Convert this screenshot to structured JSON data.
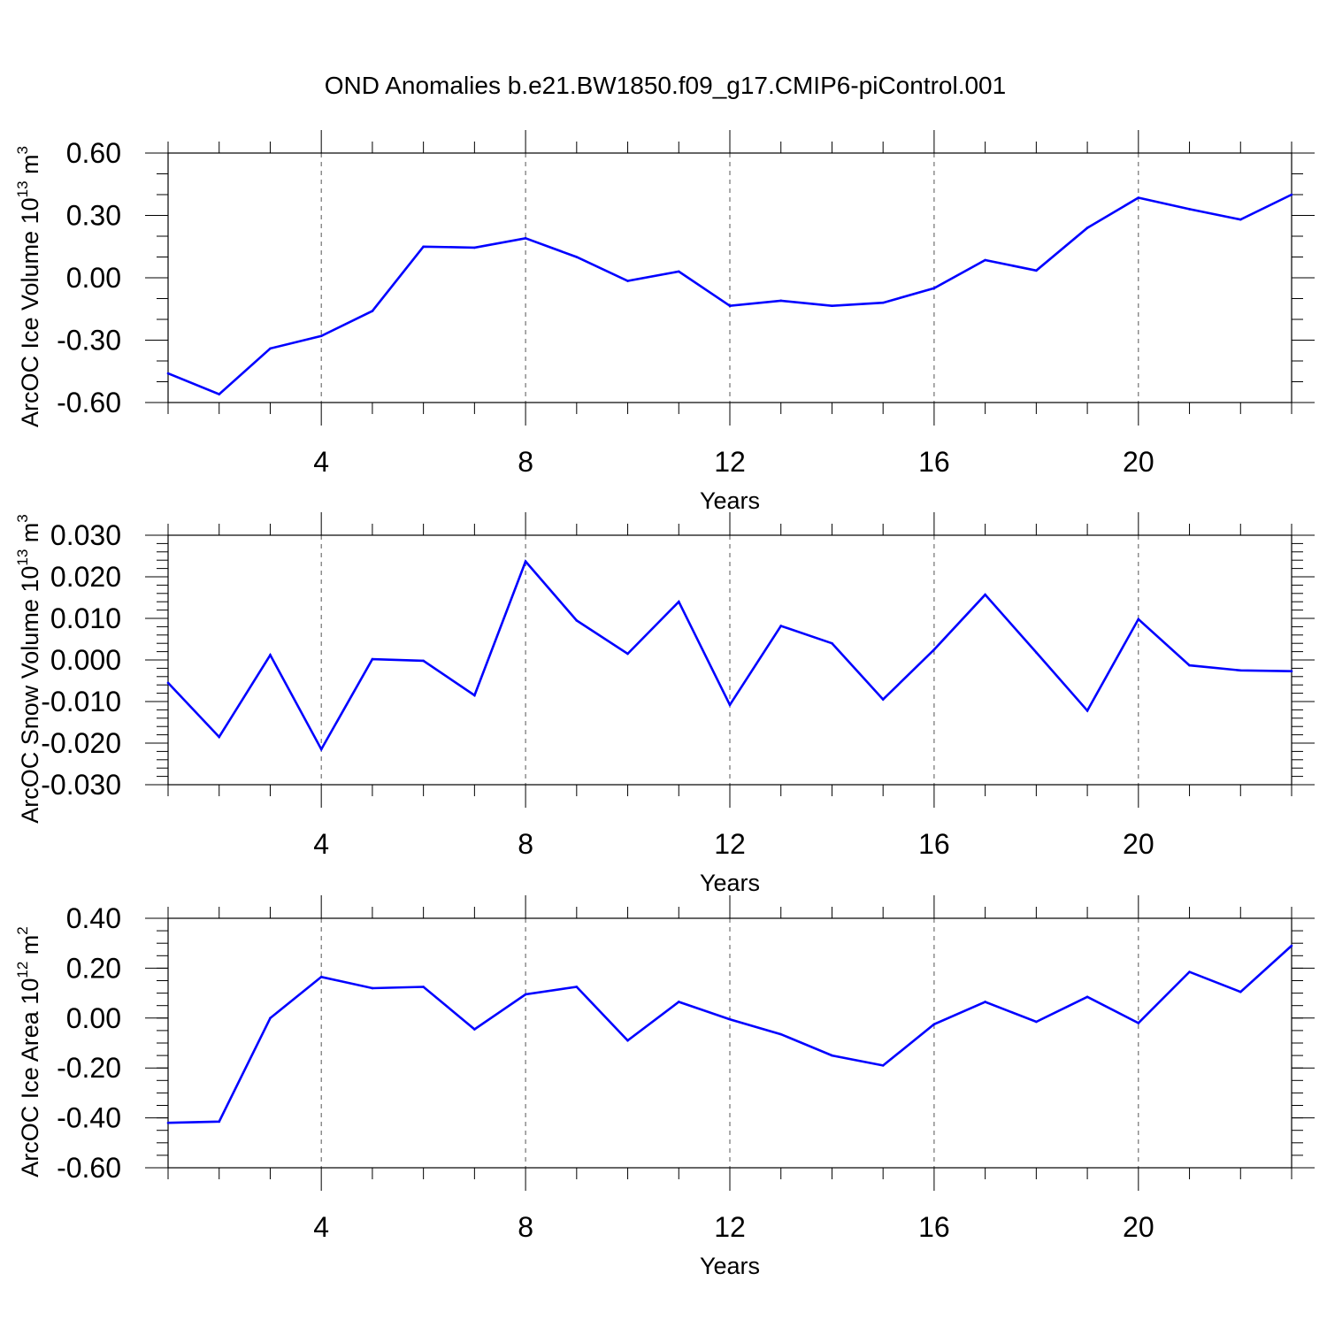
{
  "title": "OND Anomalies b.e21.BW1850.f09_g17.CMIP6-piControl.001",
  "colors": {
    "line": "#0000ff",
    "axis": "#000000",
    "grid": "#555555"
  },
  "chart_data": [
    {
      "type": "line",
      "name": "ice-volume",
      "ylabel": {
        "prefix": "ArcOC Ice Volume 10",
        "exp": "13",
        "unit": " m",
        "unit_exp": "3"
      },
      "xlabel": "Years",
      "xlim": [
        1,
        23
      ],
      "xticks": [
        4,
        8,
        12,
        16,
        20
      ],
      "xtick_labels": [
        "4",
        "8",
        "12",
        "16",
        "20"
      ],
      "ylim": [
        -0.6,
        0.6
      ],
      "yticks": [
        -0.6,
        -0.3,
        0.0,
        0.3,
        0.6
      ],
      "ytick_labels": [
        "-0.60",
        "-0.30",
        "0.00",
        "0.30",
        "0.60"
      ],
      "yminor_step": 0.1,
      "x": [
        1,
        2,
        3,
        4,
        5,
        6,
        7,
        8,
        9,
        10,
        11,
        12,
        13,
        14,
        15,
        16,
        17,
        18,
        19,
        20,
        21,
        22,
        23
      ],
      "values": [
        -0.46,
        -0.56,
        -0.34,
        -0.28,
        -0.16,
        0.15,
        0.145,
        0.19,
        0.1,
        -0.015,
        0.03,
        -0.135,
        -0.11,
        -0.135,
        -0.12,
        -0.05,
        0.085,
        0.035,
        0.24,
        0.385,
        0.33,
        0.28,
        0.4
      ]
    },
    {
      "type": "line",
      "name": "snow-volume",
      "ylabel": {
        "prefix": "ArcOC Snow Volume 10",
        "exp": "13",
        "unit": " m",
        "unit_exp": "3"
      },
      "xlabel": "Years",
      "xlim": [
        1,
        23
      ],
      "xticks": [
        4,
        8,
        12,
        16,
        20
      ],
      "xtick_labels": [
        "4",
        "8",
        "12",
        "16",
        "20"
      ],
      "ylim": [
        -0.03,
        0.03
      ],
      "yticks": [
        -0.03,
        -0.02,
        -0.01,
        0.0,
        0.01,
        0.02,
        0.03
      ],
      "ytick_labels": [
        "-0.030",
        "-0.020",
        "-0.010",
        "0.000",
        "0.010",
        "0.020",
        "0.030"
      ],
      "yminor_step": 0.002,
      "x": [
        1,
        2,
        3,
        4,
        5,
        6,
        7,
        8,
        9,
        10,
        11,
        12,
        13,
        14,
        15,
        16,
        17,
        18,
        19,
        20,
        21,
        22,
        23
      ],
      "values": [
        -0.0055,
        -0.0185,
        0.0012,
        -0.0215,
        0.0002,
        -0.0002,
        -0.0085,
        0.0237,
        0.0095,
        0.0015,
        0.014,
        -0.0108,
        0.0082,
        0.004,
        -0.0095,
        0.0025,
        0.0157,
        0.0018,
        -0.0122,
        0.0098,
        -0.0013,
        -0.0025,
        -0.0027
      ]
    },
    {
      "type": "line",
      "name": "ice-area",
      "ylabel": {
        "prefix": "ArcOC Ice Area 10",
        "exp": "12",
        "unit": " m",
        "unit_exp": "2"
      },
      "xlabel": "Years",
      "xlim": [
        1,
        23
      ],
      "xticks": [
        4,
        8,
        12,
        16,
        20
      ],
      "xtick_labels": [
        "4",
        "8",
        "12",
        "16",
        "20"
      ],
      "ylim": [
        -0.6,
        0.4
      ],
      "yticks": [
        -0.6,
        -0.4,
        -0.2,
        0.0,
        0.2,
        0.4
      ],
      "ytick_labels": [
        "-0.60",
        "-0.40",
        "-0.20",
        "0.00",
        "0.20",
        "0.40"
      ],
      "yminor_step": 0.05,
      "x": [
        1,
        2,
        3,
        4,
        5,
        6,
        7,
        8,
        9,
        10,
        11,
        12,
        13,
        14,
        15,
        16,
        17,
        18,
        19,
        20,
        21,
        22,
        23
      ],
      "values": [
        -0.42,
        -0.415,
        0.0,
        0.165,
        0.12,
        0.125,
        -0.045,
        0.095,
        0.125,
        -0.09,
        0.065,
        -0.005,
        -0.065,
        -0.15,
        -0.19,
        -0.025,
        0.065,
        -0.015,
        0.085,
        -0.02,
        0.185,
        0.105,
        0.29
      ]
    }
  ]
}
